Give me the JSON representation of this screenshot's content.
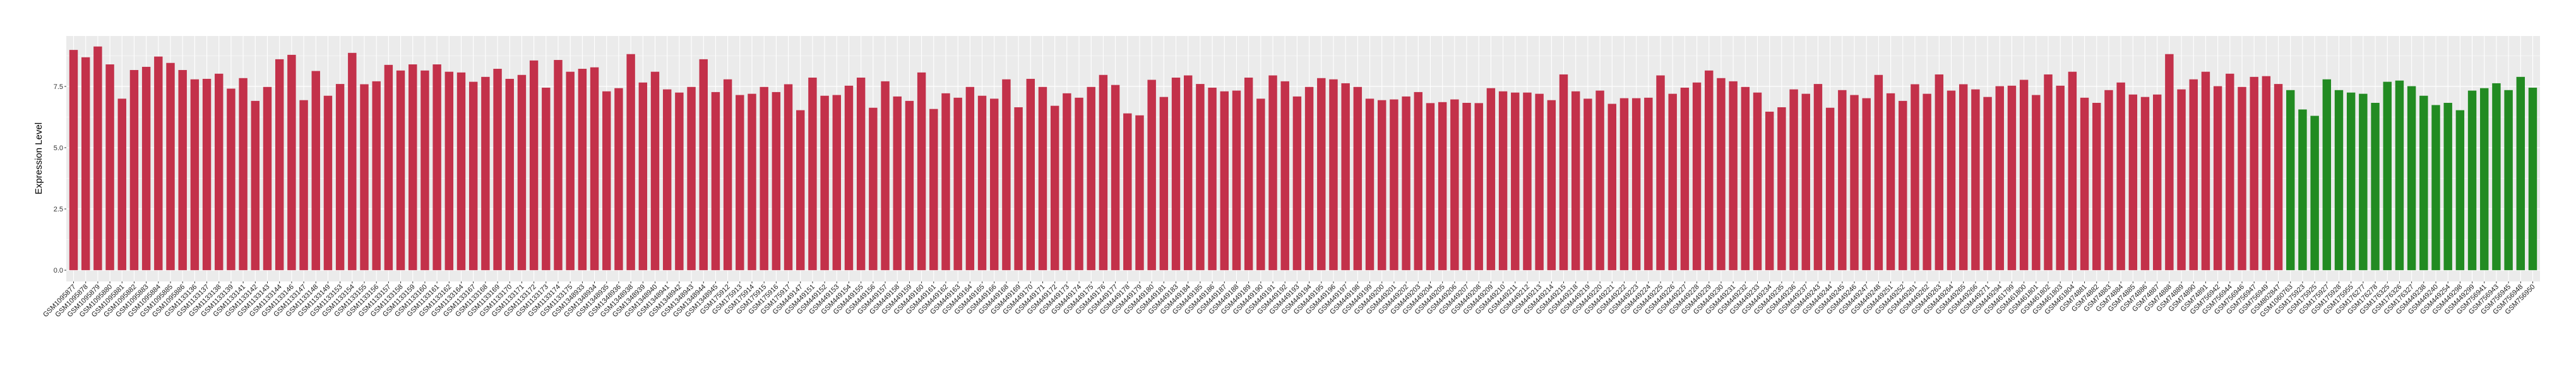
{
  "chart_data": {
    "type": "bar",
    "title": "",
    "xlabel": "",
    "ylabel": "Expression Level",
    "ylim": [
      -0.46,
      9.56
    ],
    "yticks": [
      "0.0",
      "2.5",
      "5.0",
      "7.5"
    ],
    "grid": true,
    "legend": "none",
    "panel_background": "#EBEBEB",
    "series": [
      {
        "color": "#C3314A",
        "categories": [
          "GSM1095877",
          "GSM1095878",
          "GSM1095879",
          "GSM1095880",
          "GSM1095881",
          "GSM1095882",
          "GSM1095883",
          "GSM1095884",
          "GSM1095885",
          "GSM1095886",
          "GSM1133136",
          "GSM1133137",
          "GSM1133138",
          "GSM1133139",
          "GSM1133141",
          "GSM1133142",
          "GSM1133143",
          "GSM1133144",
          "GSM1133146",
          "GSM1133147",
          "GSM1133148",
          "GSM1133149",
          "GSM1133153",
          "GSM1133154",
          "GSM1133155",
          "GSM1133156",
          "GSM1133157",
          "GSM1133158",
          "GSM1133159",
          "GSM1133160",
          "GSM1133161",
          "GSM1133162",
          "GSM1133164",
          "GSM1133167",
          "GSM1133168",
          "GSM1133169",
          "GSM1133170",
          "GSM1133171",
          "GSM1133172",
          "GSM1133173",
          "GSM1133174",
          "GSM1133175",
          "GSM1348933",
          "GSM1348934",
          "GSM1348935",
          "GSM1348936",
          "GSM1348938",
          "GSM1348939",
          "GSM1348940",
          "GSM1348941",
          "GSM1348942",
          "GSM1348943",
          "GSM1348944",
          "GSM1348945",
          "GSM175912",
          "GSM175913",
          "GSM175914",
          "GSM175915",
          "GSM175916",
          "GSM175917",
          "GSM449147",
          "GSM449151",
          "GSM449152",
          "GSM449153",
          "GSM449154",
          "GSM449155",
          "GSM449156",
          "GSM449157",
          "GSM449158",
          "GSM449159",
          "GSM449160",
          "GSM449161",
          "GSM449162",
          "GSM449163",
          "GSM449164",
          "GSM449165",
          "GSM449166",
          "GSM449168",
          "GSM449169",
          "GSM449170",
          "GSM449171",
          "GSM449172",
          "GSM449173",
          "GSM449174",
          "GSM449175",
          "GSM449176",
          "GSM449177",
          "GSM449178",
          "GSM449179",
          "GSM449180",
          "GSM449181",
          "GSM449183",
          "GSM449184",
          "GSM449185",
          "GSM449186",
          "GSM449187",
          "GSM449188",
          "GSM449189",
          "GSM449190",
          "GSM449191",
          "GSM449192",
          "GSM449193",
          "GSM449194",
          "GSM449195",
          "GSM449196",
          "GSM449197",
          "GSM449198",
          "GSM449199",
          "GSM449200",
          "GSM449201",
          "GSM449202",
          "GSM449203",
          "GSM449204",
          "GSM449205",
          "GSM449206",
          "GSM449207",
          "GSM449208",
          "GSM449209",
          "GSM449210",
          "GSM449211",
          "GSM449212",
          "GSM449213",
          "GSM449214",
          "GSM449215",
          "GSM449218",
          "GSM449219",
          "GSM449220",
          "GSM449221",
          "GSM449222",
          "GSM449223",
          "GSM449224",
          "GSM449225",
          "GSM449226",
          "GSM449227",
          "GSM449228",
          "GSM449229",
          "GSM449230",
          "GSM449231",
          "GSM449232",
          "GSM449233",
          "GSM449234",
          "GSM449235",
          "GSM449236",
          "GSM449237",
          "GSM449243",
          "GSM449244",
          "GSM449245",
          "GSM449246",
          "GSM449247",
          "GSM449248",
          "GSM449251",
          "GSM449252",
          "GSM449261",
          "GSM449262",
          "GSM449263",
          "GSM449264",
          "GSM449265",
          "GSM449266",
          "GSM449271",
          "GSM449294",
          "GSM461799",
          "GSM461800",
          "GSM461801",
          "GSM461802",
          "GSM461803",
          "GSM461804",
          "GSM74881",
          "GSM74882",
          "GSM74883",
          "GSM74884",
          "GSM74885",
          "GSM74886",
          "GSM74887",
          "GSM74888",
          "GSM74889",
          "GSM74890",
          "GSM74891",
          "GSM756942",
          "GSM756944",
          "GSM756946",
          "GSM756947",
          "GSM756949",
          "GSM802847"
        ],
        "values": [
          8.99,
          8.69,
          9.13,
          8.4,
          7.0,
          8.17,
          8.3,
          8.72,
          8.46,
          8.17,
          7.79,
          7.81,
          8.02,
          7.41,
          7.84,
          6.91,
          7.48,
          8.61,
          8.79,
          6.94,
          8.13,
          7.12,
          7.6,
          8.87,
          7.59,
          7.71,
          8.38,
          8.15,
          8.4,
          8.15,
          8.4,
          8.1,
          8.07,
          7.69,
          7.89,
          8.22,
          7.81,
          7.97,
          8.56,
          7.45,
          8.58,
          8.1,
          8.22,
          8.28,
          7.3,
          7.43,
          8.82,
          7.66,
          8.1,
          7.38,
          7.25,
          7.48,
          8.61,
          7.27,
          7.79,
          7.15,
          7.2,
          7.48,
          7.27,
          7.59,
          6.53,
          7.86,
          7.12,
          7.15,
          7.53,
          7.86,
          6.63,
          7.71,
          7.09,
          6.91,
          8.07,
          6.58,
          7.22,
          7.04,
          7.48,
          7.12,
          7.0,
          7.79,
          6.65,
          7.81,
          7.48,
          6.71,
          7.22,
          7.04,
          7.48,
          7.97,
          7.56,
          6.4,
          6.32,
          7.77,
          7.07,
          7.86,
          7.95,
          7.6,
          7.45,
          7.3,
          7.33,
          7.86,
          7.0,
          7.95,
          7.71,
          7.09,
          7.48,
          7.84,
          7.79,
          7.63,
          7.48,
          7.0,
          6.94,
          6.97,
          7.09,
          7.27,
          6.82,
          6.86,
          6.97,
          6.83,
          6.82,
          7.43,
          7.3,
          7.25,
          7.25,
          7.2,
          6.94,
          7.99,
          7.3,
          7.0,
          7.33,
          6.79,
          7.02,
          7.02,
          7.04,
          7.95,
          7.2,
          7.45,
          7.66,
          8.15,
          7.84,
          7.71,
          7.48,
          7.25,
          6.47,
          6.65,
          7.38,
          7.2,
          7.6,
          6.63,
          7.35,
          7.15,
          7.02,
          7.97,
          7.22,
          6.91,
          7.59,
          7.2,
          7.99,
          7.33,
          7.59,
          7.38,
          7.07,
          7.51,
          7.53,
          7.77,
          7.15,
          7.99,
          7.53,
          8.1,
          7.04,
          6.83,
          7.35,
          7.66,
          7.17,
          7.07,
          7.17,
          8.82,
          7.38,
          7.79,
          8.1,
          7.51,
          8.02,
          7.48,
          7.89,
          7.92,
          7.6
        ]
      },
      {
        "color": "#228B22",
        "categories": [
          "GSM1060763",
          "GSM175923",
          "GSM175925",
          "GSM175927",
          "GSM175928",
          "GSM175955",
          "GSM176277",
          "GSM176278",
          "GSM176325",
          "GSM176326",
          "GSM176327",
          "GSM449238",
          "GSM449240",
          "GSM449254",
          "GSM449298",
          "GSM449299",
          "GSM756941",
          "GSM756943",
          "GSM756945",
          "GSM756948",
          "GSM756950"
        ],
        "values": [
          7.35,
          6.56,
          6.3,
          7.79,
          7.35,
          7.25,
          7.2,
          6.83,
          7.69,
          7.74,
          7.51,
          7.12,
          6.74,
          6.83,
          6.53,
          7.33,
          7.43,
          7.63,
          7.35,
          7.89,
          7.45
        ]
      }
    ]
  }
}
